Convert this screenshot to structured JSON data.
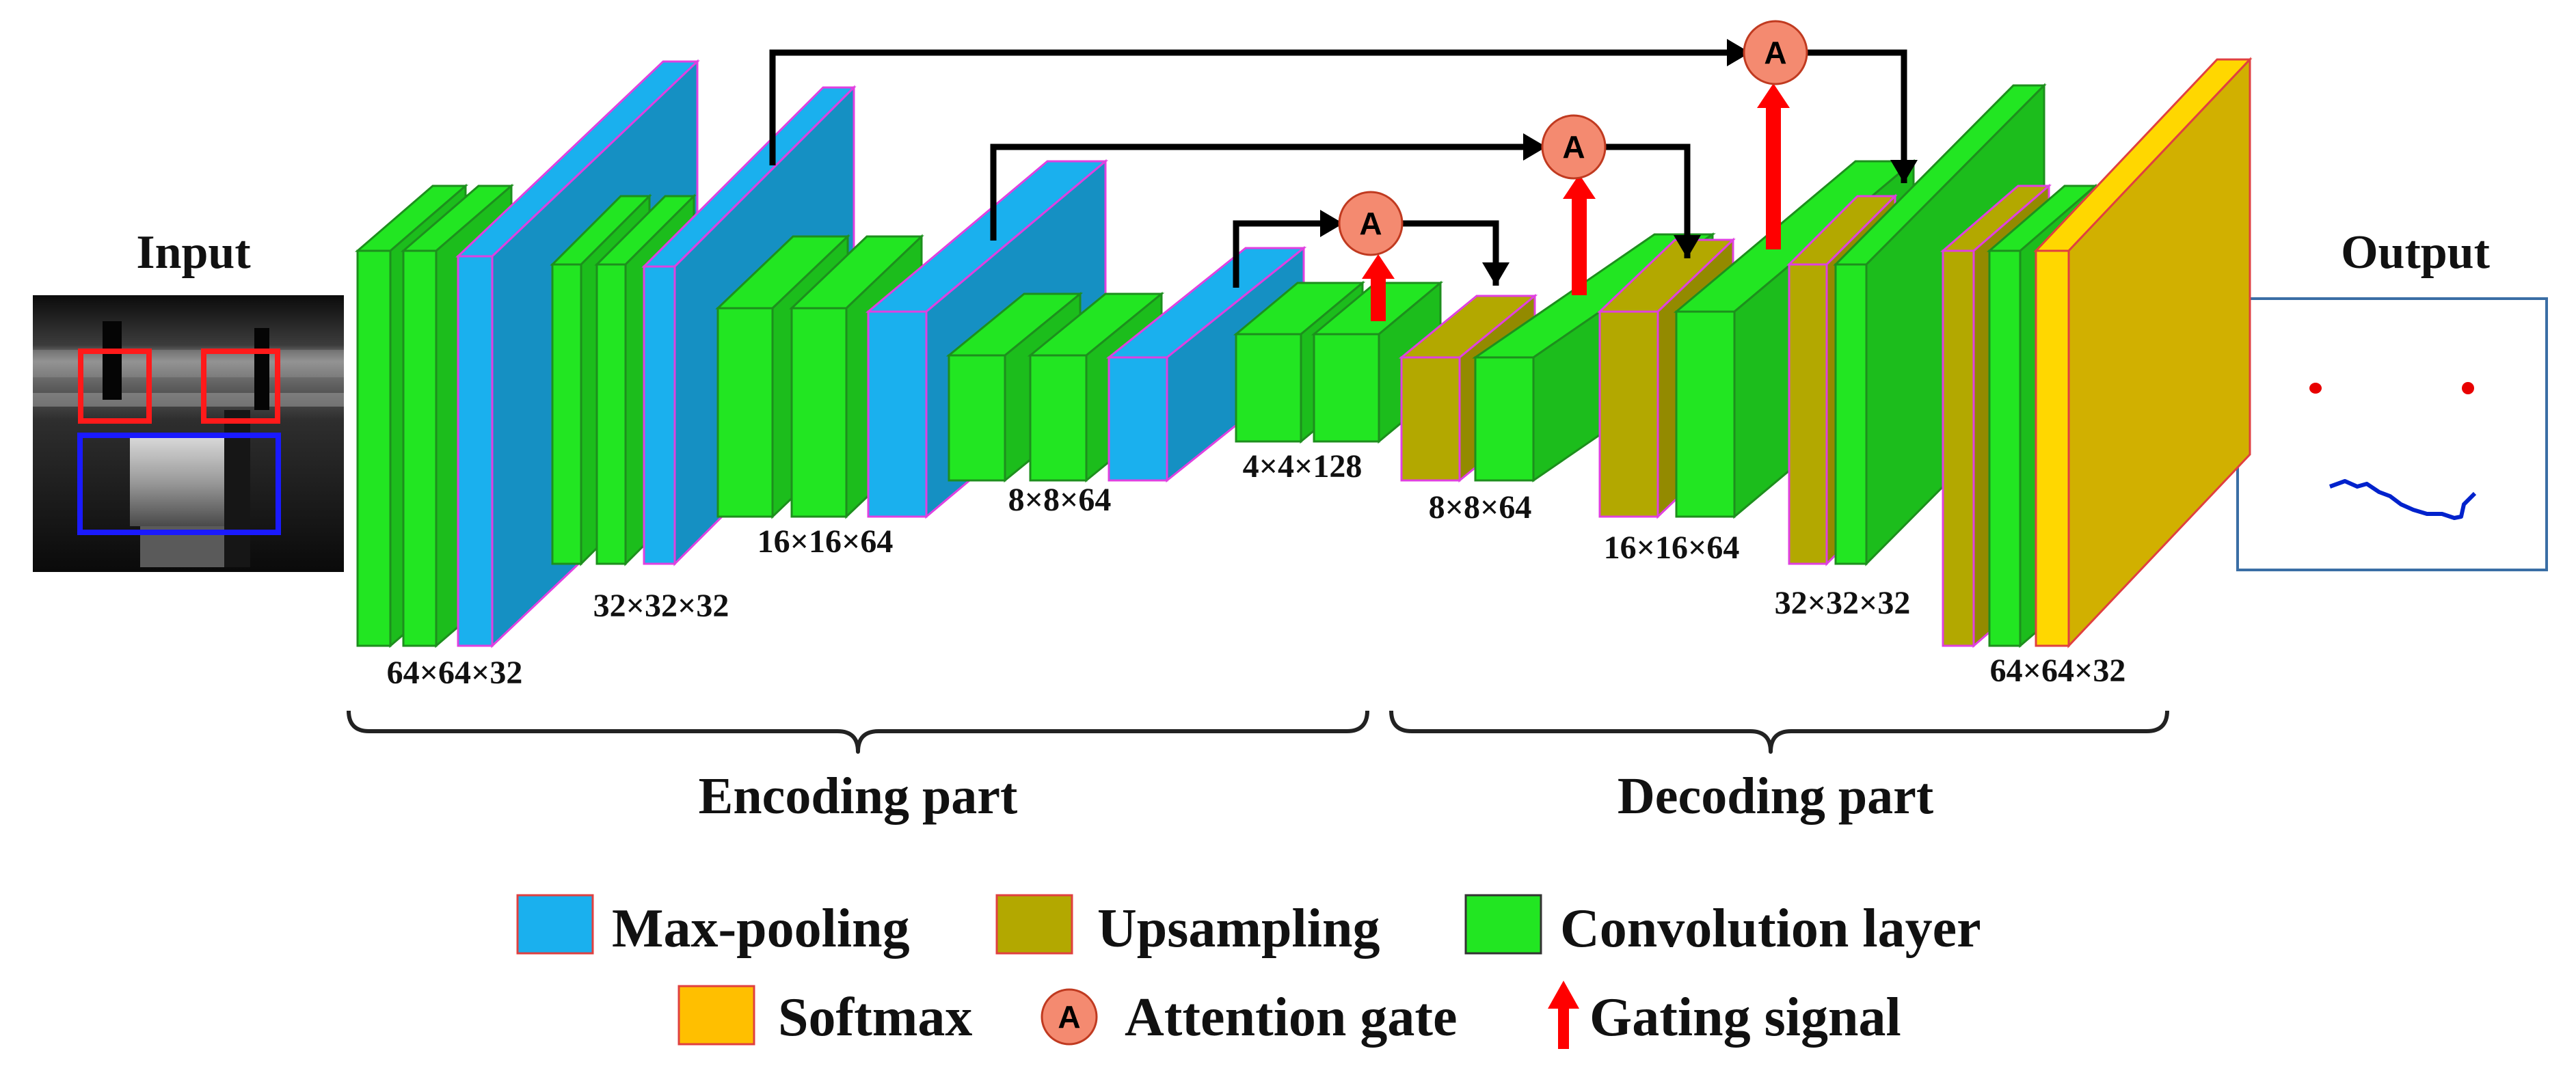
{
  "colors": {
    "maxpool": "#1ab0ee",
    "upsample": "#b3a800",
    "conv": "#22e622",
    "softmax": "#ffd700",
    "softmax_legend": "#ffbf00",
    "attention": "#f48a70",
    "gating": "#ff0000",
    "arrow": "#000000",
    "roi_red": "#ff1a1a",
    "roi_blue": "#1a1aff",
    "output_red": "#e80000",
    "output_blue": "#0022cc",
    "output_frame": "#3a6ea5"
  },
  "labels": {
    "input": "Input",
    "output": "Output",
    "encoding": "Encoding part",
    "decoding": "Decoding part"
  },
  "dims": {
    "enc1": "64×64×32",
    "enc2": "32×32×32",
    "enc3": "16×16×64",
    "enc4": "8×8×64",
    "bottleneck": "4×4×128",
    "dec4": "8×8×64",
    "dec3": "16×16×64",
    "dec2": "32×32×32",
    "dec1": "64×64×32"
  },
  "legend": {
    "maxpool": "Max-pooling",
    "upsample": "Upsampling",
    "conv": "Convolution layer",
    "softmax": "Softmax",
    "attention": "Attention gate",
    "gating": "Gating signal",
    "attention_symbol": "A"
  }
}
